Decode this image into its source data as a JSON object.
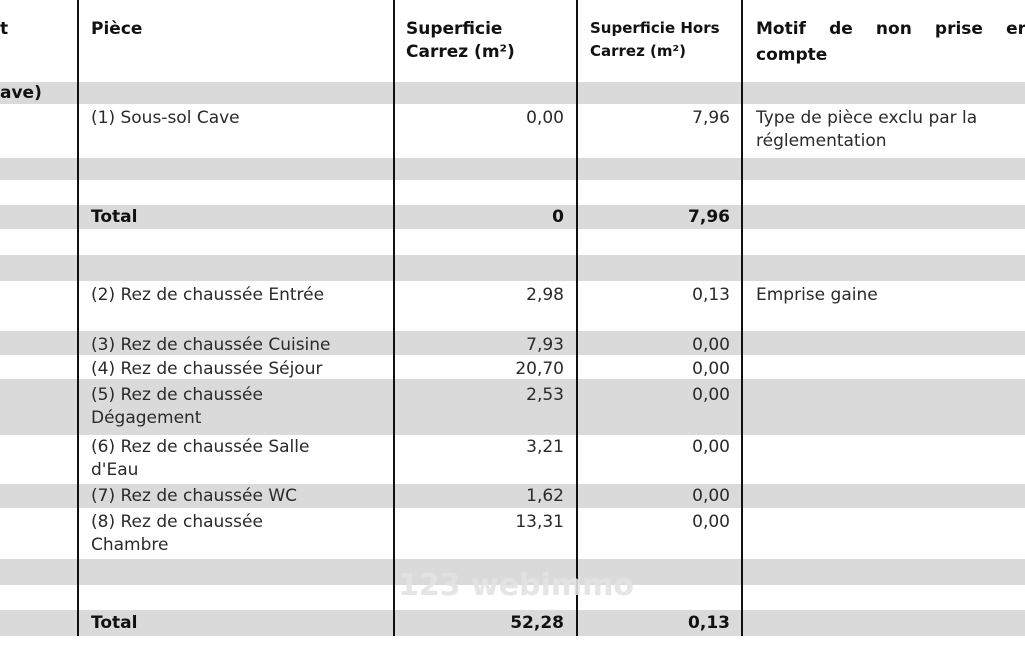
{
  "headers": {
    "left_cut": "t",
    "piece": "Pièce",
    "carrez_l1": "Superficie",
    "carrez_l2": "Carrez (m²)",
    "hors_l1": "Superficie Hors",
    "hors_l2": "Carrez (m²)",
    "motif_w1": "Motif",
    "motif_w2": "de",
    "motif_w3": "non",
    "motif_w4": "prise",
    "motif_w5": "er",
    "motif_l2": "compte"
  },
  "section_label": "ave)",
  "rows": [
    {
      "piece": "(1) Sous-sol Cave",
      "carrez": "0,00",
      "hors": "7,96",
      "motif": "Type de pièce exclu par la réglementation"
    },
    {
      "piece": "(2) Rez de chaussée Entrée",
      "carrez": "2,98",
      "hors": "0,13",
      "motif": "Emprise gaine"
    },
    {
      "piece": "(3) Rez de chaussée Cuisine",
      "carrez": "7,93",
      "hors": "0,00",
      "motif": ""
    },
    {
      "piece": "(4) Rez de chaussée Séjour",
      "carrez": "20,70",
      "hors": "0,00",
      "motif": ""
    },
    {
      "piece": "(5) Rez de chaussée Dégagement",
      "carrez": "2,53",
      "hors": "0,00",
      "motif": ""
    },
    {
      "piece": "(6) Rez de chaussée Salle d'Eau",
      "carrez": "3,21",
      "hors": "0,00",
      "motif": ""
    },
    {
      "piece": "(7) Rez de chaussée WC",
      "carrez": "1,62",
      "hors": "0,00",
      "motif": ""
    },
    {
      "piece": "(8) Rez de chaussée Chambre",
      "carrez": "13,31",
      "hors": "0,00",
      "motif": ""
    }
  ],
  "totals": [
    {
      "label": "Total",
      "carrez": "0",
      "hors": "7,96"
    },
    {
      "label": "Total",
      "carrez": "52,28",
      "hors": "0,13"
    }
  ],
  "watermark": "123 webimmo"
}
